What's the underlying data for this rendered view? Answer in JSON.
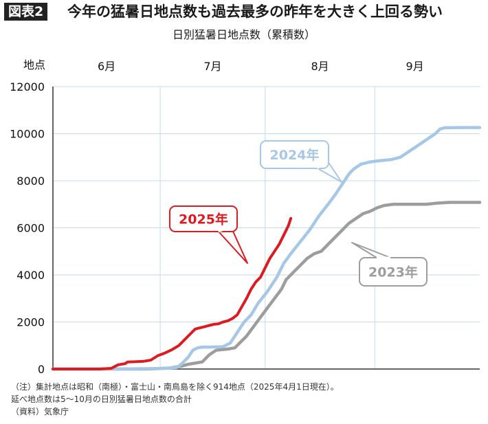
{
  "header": {
    "figure_label": "図表2",
    "headline": "今年の猛暑日地点数も過去最多の昨年を大きく上回る勢い"
  },
  "notes": [
    "（注）集計地点は昭和（南極）・富士山・南鳥島を除く914地点（2025年4月1日現在）。",
    "延べ地点数は5〜10月の日別猛暑日地点数の合計",
    "（資料）気象庁"
  ],
  "colors": {
    "2025": "#dd1a1f",
    "2024": "#a7c7e6",
    "2023": "#9d9d9d",
    "grid": "#c5daef",
    "axis": "#333333"
  },
  "chart_data": {
    "type": "line",
    "title": "日別猛暑日地点数（累積数）",
    "ylabel": "地点",
    "xlabel": "",
    "x_unit": "day index from start of May (0 = May 1)",
    "xlim": [
      0,
      183
    ],
    "ylim": [
      0,
      12000
    ],
    "yticks": [
      0,
      2000,
      4000,
      6000,
      8000,
      10000,
      12000
    ],
    "grid": true,
    "month_labels": [
      {
        "label": "6月",
        "x": 46
      },
      {
        "label": "7月",
        "x": 91
      },
      {
        "label": "8月",
        "x": 138
      },
      {
        "label": "9月",
        "x": 184
      }
    ],
    "month_dividers": [
      0,
      46,
      91,
      138,
      184
    ],
    "series": [
      {
        "name": "2025年",
        "label_pos": "callout",
        "points": [
          [
            0,
            0
          ],
          [
            20,
            0
          ],
          [
            25,
            30
          ],
          [
            28,
            180
          ],
          [
            31,
            230
          ],
          [
            32,
            300
          ],
          [
            35,
            310
          ],
          [
            39,
            330
          ],
          [
            42,
            380
          ],
          [
            45,
            570
          ],
          [
            48,
            680
          ],
          [
            51,
            820
          ],
          [
            54,
            1000
          ],
          [
            57,
            1300
          ],
          [
            59,
            1500
          ],
          [
            61,
            1700
          ],
          [
            63,
            1750
          ],
          [
            65,
            1800
          ],
          [
            67,
            1850
          ],
          [
            69,
            1900
          ],
          [
            71,
            1920
          ],
          [
            73,
            2000
          ],
          [
            75,
            2050
          ],
          [
            77,
            2150
          ],
          [
            79,
            2300
          ],
          [
            81,
            2650
          ],
          [
            83,
            3000
          ],
          [
            85,
            3400
          ],
          [
            87,
            3700
          ],
          [
            89,
            3900
          ],
          [
            91,
            4300
          ],
          [
            93,
            4700
          ],
          [
            95,
            5000
          ],
          [
            97,
            5300
          ],
          [
            99,
            5700
          ],
          [
            101,
            6100
          ],
          [
            102,
            6400
          ]
        ]
      },
      {
        "name": "2024年",
        "label_pos": "callout",
        "points": [
          [
            0,
            0
          ],
          [
            30,
            0
          ],
          [
            45,
            20
          ],
          [
            53,
            60
          ],
          [
            55,
            200
          ],
          [
            58,
            500
          ],
          [
            60,
            800
          ],
          [
            62,
            900
          ],
          [
            64,
            930
          ],
          [
            67,
            930
          ],
          [
            70,
            940
          ],
          [
            73,
            950
          ],
          [
            76,
            1100
          ],
          [
            78,
            1400
          ],
          [
            80,
            1700
          ],
          [
            82,
            2000
          ],
          [
            85,
            2300
          ],
          [
            88,
            2800
          ],
          [
            92,
            3300
          ],
          [
            96,
            3900
          ],
          [
            99,
            4500
          ],
          [
            102,
            4900
          ],
          [
            106,
            5400
          ],
          [
            110,
            5900
          ],
          [
            114,
            6500
          ],
          [
            118,
            7000
          ],
          [
            121,
            7400
          ],
          [
            123,
            7700
          ],
          [
            125,
            8000
          ],
          [
            127,
            8300
          ],
          [
            129,
            8500
          ],
          [
            132,
            8700
          ],
          [
            136,
            8800
          ],
          [
            140,
            8850
          ],
          [
            145,
            8900
          ],
          [
            149,
            9000
          ],
          [
            152,
            9200
          ],
          [
            155,
            9400
          ],
          [
            158,
            9600
          ],
          [
            161,
            9800
          ],
          [
            164,
            10000
          ],
          [
            166,
            10200
          ],
          [
            168,
            10250
          ],
          [
            175,
            10260
          ],
          [
            183,
            10260
          ]
        ]
      },
      {
        "name": "2023年",
        "label_pos": "callout",
        "points": [
          [
            0,
            0
          ],
          [
            40,
            0
          ],
          [
            46,
            20
          ],
          [
            50,
            40
          ],
          [
            55,
            120
          ],
          [
            58,
            200
          ],
          [
            61,
            250
          ],
          [
            64,
            300
          ],
          [
            67,
            600
          ],
          [
            70,
            800
          ],
          [
            75,
            850
          ],
          [
            78,
            900
          ],
          [
            80,
            1100
          ],
          [
            83,
            1400
          ],
          [
            86,
            1800
          ],
          [
            89,
            2200
          ],
          [
            92,
            2600
          ],
          [
            95,
            3000
          ],
          [
            98,
            3400
          ],
          [
            100,
            3800
          ],
          [
            103,
            4100
          ],
          [
            106,
            4400
          ],
          [
            109,
            4700
          ],
          [
            112,
            4900
          ],
          [
            115,
            5000
          ],
          [
            118,
            5300
          ],
          [
            121,
            5600
          ],
          [
            124,
            5900
          ],
          [
            127,
            6200
          ],
          [
            130,
            6400
          ],
          [
            133,
            6600
          ],
          [
            136,
            6700
          ],
          [
            139,
            6850
          ],
          [
            142,
            6950
          ],
          [
            146,
            7000
          ],
          [
            150,
            7000
          ],
          [
            155,
            7000
          ],
          [
            160,
            7000
          ],
          [
            165,
            7050
          ],
          [
            170,
            7080
          ],
          [
            175,
            7080
          ],
          [
            183,
            7080
          ]
        ]
      }
    ]
  }
}
